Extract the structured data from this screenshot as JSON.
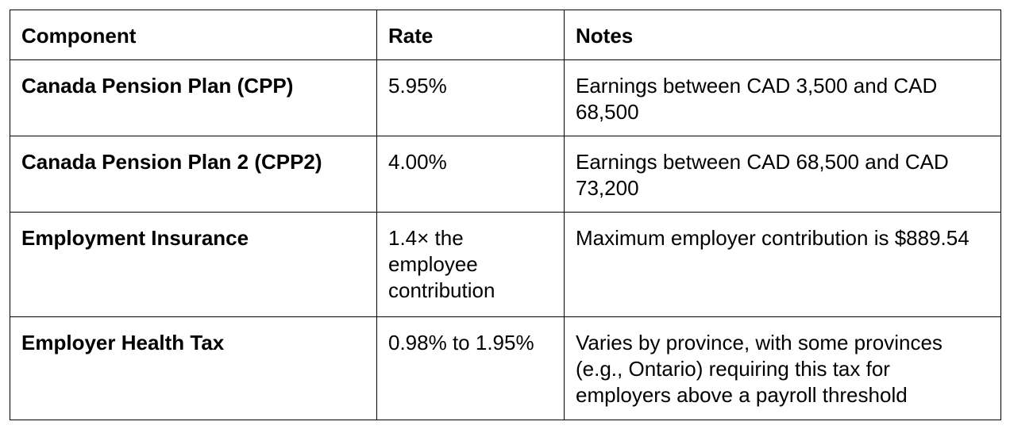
{
  "table": {
    "headers": {
      "component": "Component",
      "rate": "Rate",
      "notes": "Notes"
    },
    "rows": [
      {
        "component": "Canada Pension Plan (CPP)",
        "rate": "5.95%",
        "notes": "Earnings between CAD 3,500 and CAD 68,500"
      },
      {
        "component": "Canada Pension Plan 2 (CPP2)",
        "rate": "4.00%",
        "notes": "Earnings between CAD 68,500 and CAD 73,200"
      },
      {
        "component": "Employment Insurance",
        "rate": "1.4× the employee contribution",
        "notes": "Maximum employer contribution is $889.54"
      },
      {
        "component": "Employer Health Tax",
        "rate": "0.98% to 1.95%",
        "notes": "Varies by province, with some provinces (e.g., Ontario) requiring this tax for employers above a payroll threshold"
      }
    ]
  }
}
